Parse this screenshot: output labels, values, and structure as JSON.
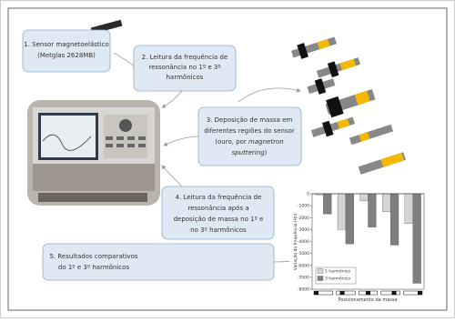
{
  "steps": [
    {
      "lines": [
        "1. Sensor magnetoelástico",
        "(Metglas 2628MB)"
      ]
    },
    {
      "lines": [
        "2. Leitura da frequência de",
        "ressonância no 1º e 3º",
        "harmônicos"
      ]
    },
    {
      "lines": [
        "3. Deposição de massa em",
        "diferentes regiões do sensor",
        "(ouro, por",
        "magnetron",
        "sputtering",
        ")"
      ]
    },
    {
      "lines": [
        "4. Leitura da frequência de",
        "ressonância após a",
        "deposição de massa no 1º e",
        "no 3º harmônicos"
      ]
    },
    {
      "lines": [
        "5. Resultados comparativos",
        "do 1º e 3º harmônicos"
      ]
    }
  ],
  "chart_data": {
    "type": "bar",
    "y_label": "Variação da frequência (Hz)",
    "x_label": "Posicionamento da massa",
    "categories": [
      null,
      null,
      null,
      null,
      null
    ],
    "series": [
      {
        "name": "1 harmônico",
        "color": "#d4d4d4",
        "values": [
          -100,
          -3000,
          -600,
          -1500,
          -2500
        ]
      },
      {
        "name": "3 harmônico",
        "color": "#7f7f7f",
        "values": [
          -1700,
          -4200,
          -2800,
          -4300,
          -7500
        ]
      }
    ],
    "ylim": [
      -8000,
      0
    ],
    "yticks": [
      0,
      -1000,
      -2000,
      -3000,
      -4000,
      -5000,
      -6000,
      -7000,
      -8000
    ],
    "legend": "lower left"
  }
}
